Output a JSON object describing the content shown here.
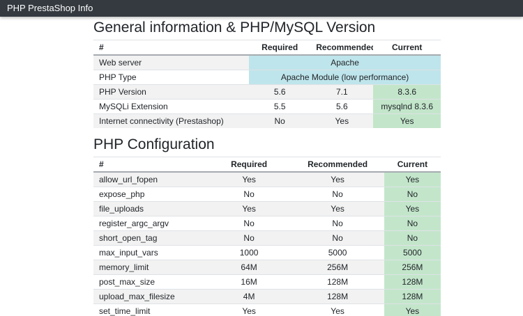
{
  "navbar": {
    "title": "PHP PrestaShop Info"
  },
  "colors": {
    "navbar_bg": "#343a40",
    "info_cell": "#bee5eb",
    "success_cell": "#c3e6cb",
    "stripe": "#f2f2f2"
  },
  "sections": [
    {
      "heading": "General information & PHP/MySQL Version",
      "columns": [
        "#",
        "Required",
        "Recommended",
        "Current"
      ],
      "rows": [
        {
          "name": "Web server",
          "span": "Apache"
        },
        {
          "name": "PHP Type",
          "span": "Apache Module (low performance)"
        },
        {
          "name": "PHP Version",
          "required": "5.6",
          "recommended": "7.1",
          "current": "8.3.6"
        },
        {
          "name": "MySQLi Extension",
          "required": "5.5",
          "recommended": "5.6",
          "current": "mysqlnd 8.3.6"
        },
        {
          "name": "Internet connectivity (Prestashop)",
          "required": "No",
          "recommended": "Yes",
          "current": "Yes"
        }
      ]
    },
    {
      "heading": "PHP Configuration",
      "columns": [
        "#",
        "Required",
        "Recommended",
        "Current"
      ],
      "rows": [
        {
          "name": "allow_url_fopen",
          "required": "Yes",
          "recommended": "Yes",
          "current": "Yes"
        },
        {
          "name": "expose_php",
          "required": "No",
          "recommended": "No",
          "current": "No"
        },
        {
          "name": "file_uploads",
          "required": "Yes",
          "recommended": "Yes",
          "current": "Yes"
        },
        {
          "name": "register_argc_argv",
          "required": "No",
          "recommended": "No",
          "current": "No"
        },
        {
          "name": "short_open_tag",
          "required": "No",
          "recommended": "No",
          "current": "No"
        },
        {
          "name": "max_input_vars",
          "required": "1000",
          "recommended": "5000",
          "current": "5000"
        },
        {
          "name": "memory_limit",
          "required": "64M",
          "recommended": "256M",
          "current": "256M"
        },
        {
          "name": "post_max_size",
          "required": "16M",
          "recommended": "128M",
          "current": "128M"
        },
        {
          "name": "upload_max_filesize",
          "required": "4M",
          "recommended": "128M",
          "current": "128M"
        },
        {
          "name": "set_time_limit",
          "required": "Yes",
          "recommended": "Yes",
          "current": "Yes"
        }
      ]
    }
  ]
}
